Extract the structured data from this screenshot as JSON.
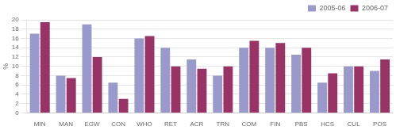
{
  "chart_data": {
    "type": "bar",
    "categories": [
      "MIN",
      "MAN",
      "EGW",
      "CON",
      "WHO",
      "RET",
      "ACR",
      "TRN",
      "COM",
      "FIN",
      "PBS",
      "HCS",
      "CUL",
      "POS"
    ],
    "series": [
      {
        "name": "2005-06",
        "color": "#9999cc",
        "values": [
          17,
          8,
          19,
          6.5,
          16,
          14,
          11.5,
          8,
          14,
          14,
          12.5,
          6.5,
          10,
          9
        ]
      },
      {
        "name": "2006-07",
        "color": "#993366",
        "values": [
          19.5,
          7.5,
          12,
          3,
          16.5,
          10,
          9.5,
          10,
          15.5,
          15,
          14,
          8.5,
          10,
          11.5
        ]
      }
    ],
    "ylabel": "%",
    "ylim": [
      0,
      20
    ],
    "yticks": [
      0,
      2,
      4,
      6,
      8,
      10,
      12,
      14,
      16,
      18,
      20
    ],
    "grid": true,
    "legend": "upper right"
  }
}
